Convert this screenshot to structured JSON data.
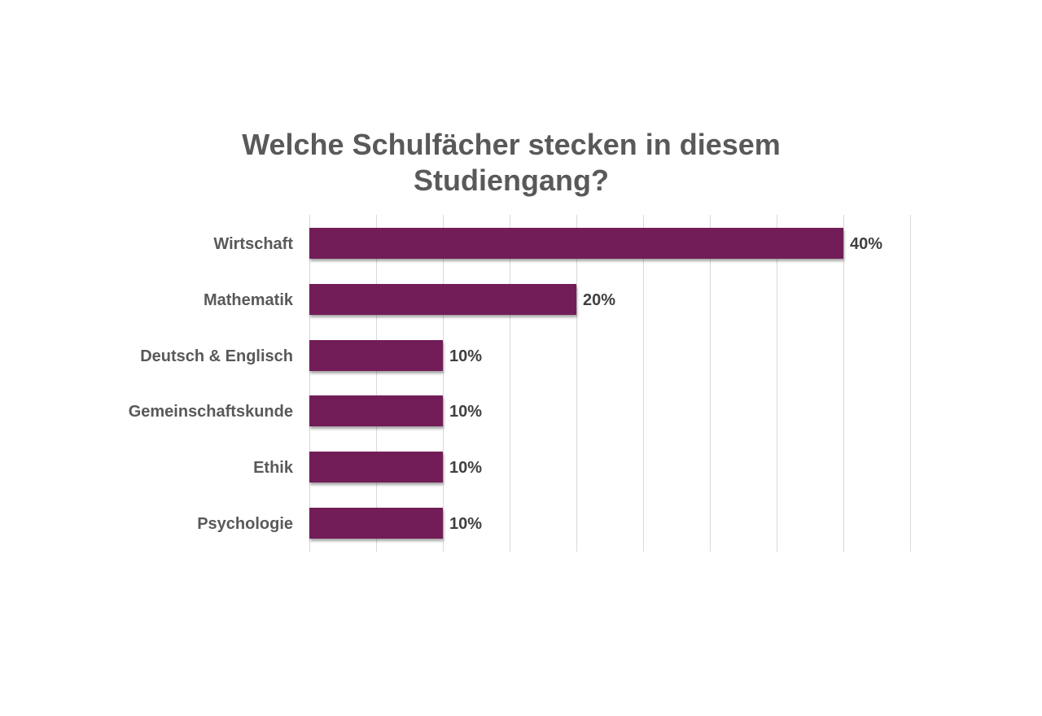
{
  "chart_data": {
    "type": "bar",
    "orientation": "horizontal",
    "title": "Welche Schulfächer stecken in diesem Studiengang?",
    "title_lines": [
      "Welche Schulfächer stecken in diesem",
      "Studiengang?"
    ],
    "categories": [
      "Wirtschaft",
      "Mathematik",
      "Deutsch & Englisch",
      "Gemeinschaftskunde",
      "Ethik",
      "Psychologie"
    ],
    "values": [
      40,
      20,
      10,
      10,
      10,
      10
    ],
    "value_labels": [
      "40%",
      "20%",
      "10%",
      "10%",
      "10%",
      "10%"
    ],
    "xlabel": "",
    "ylabel": "",
    "xlim": [
      0,
      45
    ],
    "grid": true,
    "gridline_step": 5,
    "legend": "none",
    "bar_color": "#721d57"
  }
}
